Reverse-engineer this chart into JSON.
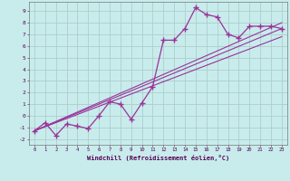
{
  "xlabel": "Windchill (Refroidissement éolien,°C)",
  "xlim": [
    -0.5,
    23.5
  ],
  "ylim": [
    -2.5,
    9.8
  ],
  "xticks": [
    0,
    1,
    2,
    3,
    4,
    5,
    6,
    7,
    8,
    9,
    10,
    11,
    12,
    13,
    14,
    15,
    16,
    17,
    18,
    19,
    20,
    21,
    22,
    23
  ],
  "yticks": [
    -2,
    -1,
    0,
    1,
    2,
    3,
    4,
    5,
    6,
    7,
    8,
    9
  ],
  "bg_color": "#c8ecec",
  "grid_color": "#b0cccc",
  "line_color": "#993399",
  "data_line": {
    "x": [
      0,
      1,
      2,
      3,
      4,
      5,
      6,
      7,
      8,
      9,
      10,
      11,
      12,
      13,
      14,
      15,
      16,
      17,
      18,
      19,
      20,
      21,
      22,
      23
    ],
    "y": [
      -1.3,
      -0.6,
      -1.7,
      -0.7,
      -0.9,
      -1.1,
      0.0,
      1.2,
      1.0,
      -0.3,
      1.1,
      2.5,
      6.5,
      6.5,
      7.5,
      9.3,
      8.7,
      8.5,
      7.0,
      6.7,
      7.7,
      7.7,
      7.7,
      7.5
    ]
  },
  "upper_line": {
    "x": [
      0,
      23
    ],
    "y": [
      -1.3,
      8.0
    ]
  },
  "lower_line": {
    "x": [
      0,
      23
    ],
    "y": [
      -1.3,
      6.8
    ]
  },
  "mid_line": {
    "x": [
      0,
      23
    ],
    "y": [
      -1.3,
      7.5
    ]
  }
}
